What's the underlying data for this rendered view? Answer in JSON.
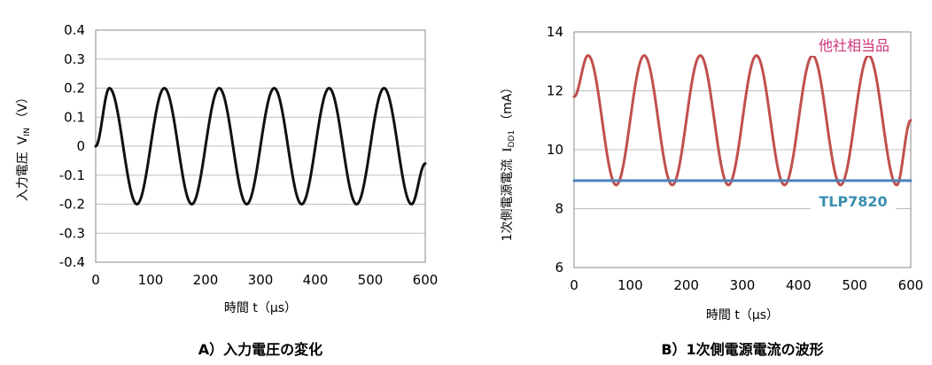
{
  "chart_data": [
    {
      "type": "line",
      "ylabel": "入力電圧",
      "ylabel_var": "V",
      "ylabel_sub": "IN",
      "ylabel_unit": "（V）",
      "xlabel": "時間 t（μs）",
      "xlim": [
        0,
        600
      ],
      "ylim": [
        -0.4,
        0.4
      ],
      "xticks": [
        "0",
        "100",
        "200",
        "300",
        "400",
        "500",
        "600"
      ],
      "yticks": [
        "0.4",
        "0.3",
        "0.2",
        "0.1",
        "0",
        "-0.1",
        "-0.2",
        "-0.3",
        "-0.4"
      ],
      "grid": "horizontal",
      "series": [
        {
          "color": "#111111",
          "x": [
            0,
            25,
            75,
            125,
            175,
            225,
            275,
            325,
            375,
            425,
            475,
            525,
            575,
            600
          ],
          "y": [
            0,
            0.2,
            -0.2,
            0.2,
            -0.2,
            0.2,
            -0.2,
            0.2,
            -0.2,
            0.2,
            -0.2,
            0.2,
            -0.2,
            -0.06
          ]
        }
      ],
      "caption": "A）入力電圧の変化"
    },
    {
      "type": "line",
      "ylabel": "1次側電源電流",
      "ylabel_var": "I",
      "ylabel_sub": "DD1",
      "ylabel_unit": "（mA）",
      "xlabel": "時間 t（μs）",
      "xlim": [
        0,
        600
      ],
      "ylim": [
        6,
        14
      ],
      "xticks": [
        "0",
        "100",
        "200",
        "300",
        "400",
        "500",
        "600"
      ],
      "yticks": [
        "14",
        "12",
        "10",
        "8",
        "6"
      ],
      "grid": "horizontal",
      "series": [
        {
          "name": "他社相当品",
          "color": "#c0504d",
          "label_color": "#cc3377",
          "x": [
            0,
            25,
            75,
            125,
            175,
            225,
            275,
            325,
            375,
            425,
            475,
            525,
            575,
            600
          ],
          "y": [
            11.8,
            13.2,
            8.8,
            13.2,
            8.8,
            13.2,
            8.8,
            13.2,
            8.8,
            13.2,
            8.8,
            13.2,
            8.8,
            11.0
          ]
        },
        {
          "name": "TLP7820",
          "color": "#4f81bd",
          "label_color": "#3a8fb0",
          "x": [
            0,
            600
          ],
          "y": [
            8.95,
            8.95
          ]
        }
      ],
      "caption": "B）1次側電源電流の波形"
    }
  ]
}
